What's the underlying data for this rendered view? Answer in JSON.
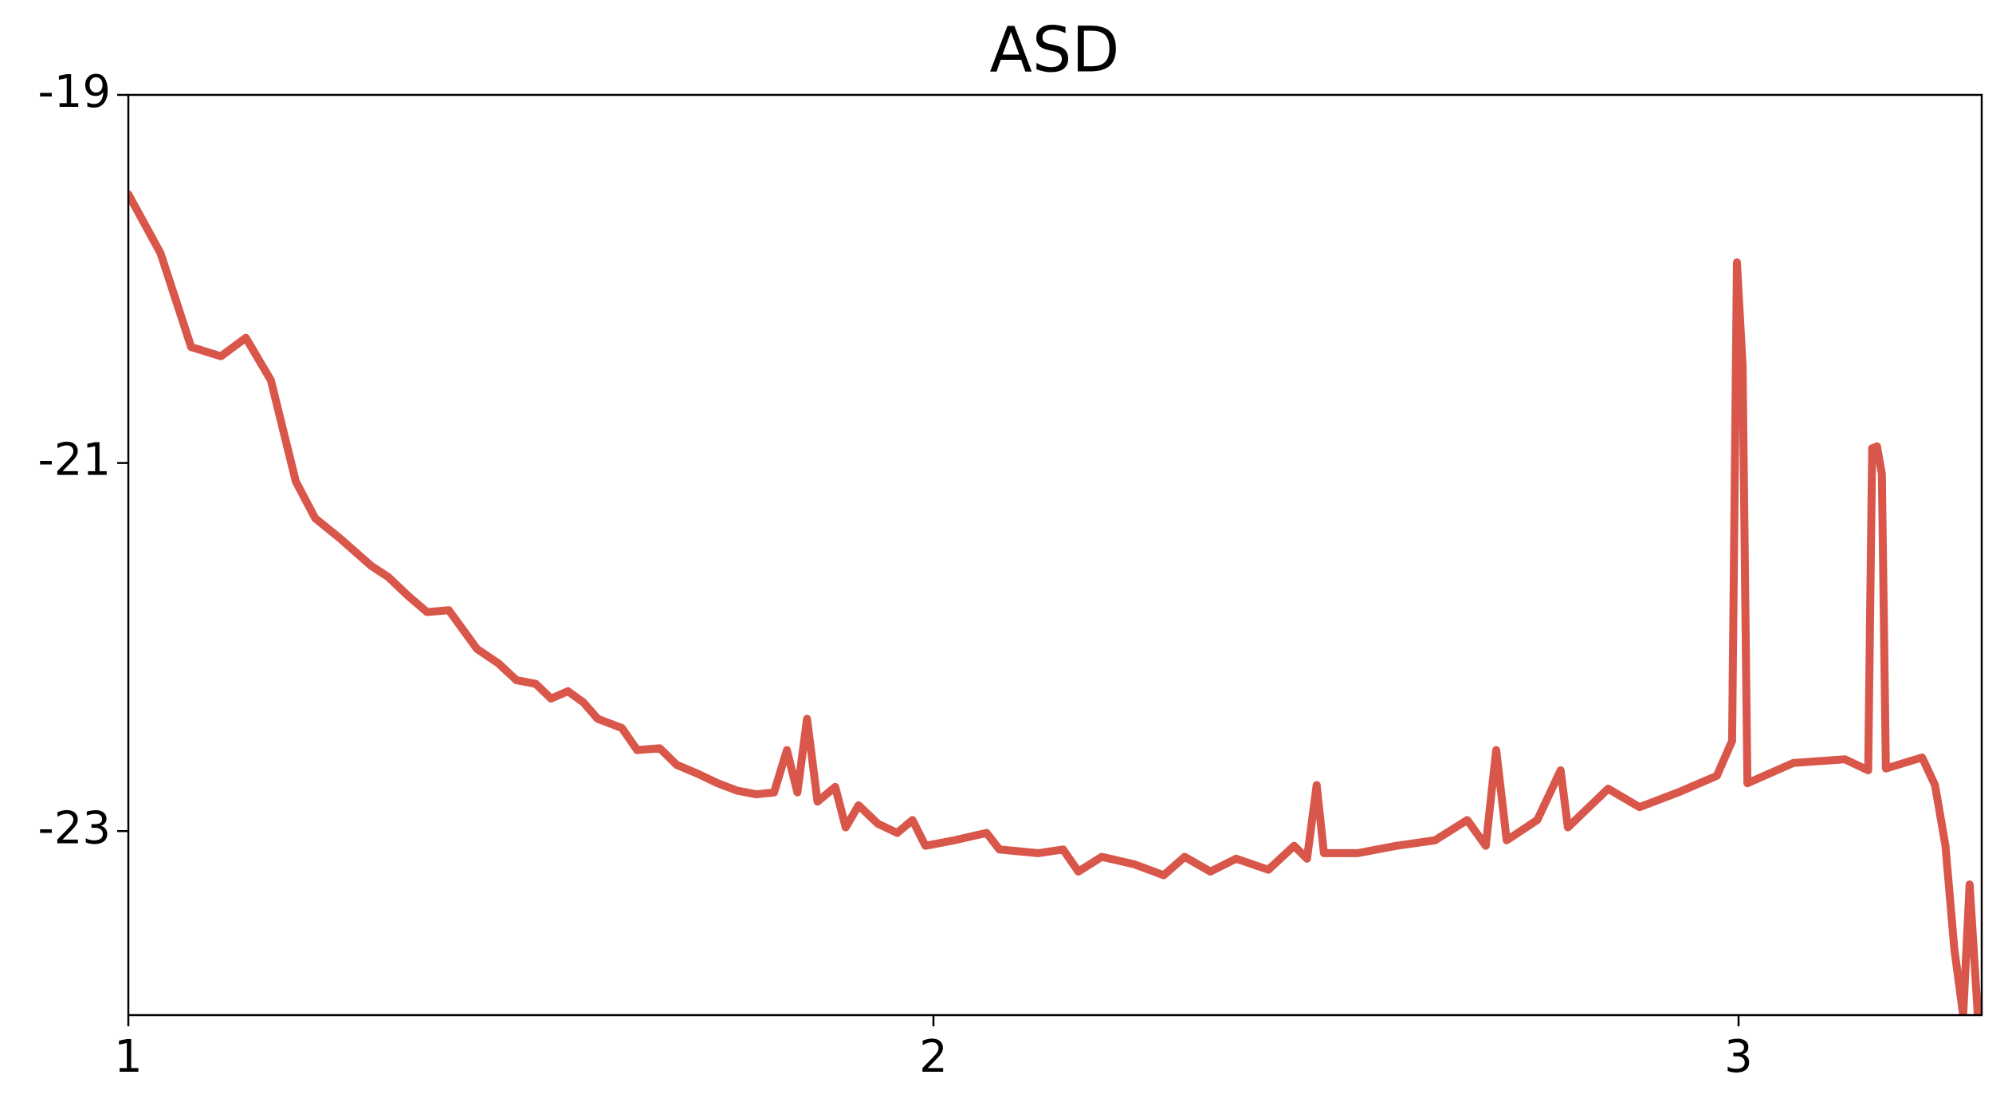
{
  "chart_data": {
    "type": "line",
    "title": "ASD",
    "x": [
      1.0,
      1.04,
      1.078,
      1.115,
      1.146,
      1.177,
      1.208,
      1.232,
      1.263,
      1.302,
      1.323,
      1.347,
      1.371,
      1.398,
      1.433,
      1.46,
      1.482,
      1.506,
      1.525,
      1.546,
      1.565,
      1.583,
      1.613,
      1.632,
      1.66,
      1.681,
      1.708,
      1.732,
      1.756,
      1.78,
      1.802,
      1.818,
      1.831,
      1.843,
      1.856,
      1.878,
      1.891,
      1.907,
      1.931,
      1.955,
      1.974,
      1.99,
      2.026,
      2.066,
      2.082,
      2.13,
      2.161,
      2.18,
      2.209,
      2.249,
      2.286,
      2.312,
      2.344,
      2.376,
      2.416,
      2.448,
      2.464,
      2.476,
      2.485,
      2.527,
      2.575,
      2.623,
      2.663,
      2.686,
      2.699,
      2.712,
      2.75,
      2.779,
      2.788,
      2.838,
      2.877,
      2.925,
      2.973,
      2.992,
      2.998,
      3.005,
      3.011,
      3.068,
      3.132,
      3.161,
      3.166,
      3.172,
      3.178,
      3.183,
      3.228,
      3.244,
      3.257,
      3.268,
      3.279,
      3.287,
      3.297
    ],
    "series": [
      {
        "color": "#d9574a",
        "values": [
          -19.54,
          -19.86,
          -20.37,
          -20.42,
          -20.32,
          -20.55,
          -21.1,
          -21.3,
          -21.41,
          -21.56,
          -21.62,
          -21.72,
          -21.81,
          -21.8,
          -22.01,
          -22.09,
          -22.18,
          -22.2,
          -22.28,
          -22.24,
          -22.3,
          -22.39,
          -22.44,
          -22.56,
          -22.55,
          -22.64,
          -22.69,
          -22.74,
          -22.78,
          -22.8,
          -22.79,
          -22.56,
          -22.79,
          -22.39,
          -22.84,
          -22.76,
          -22.98,
          -22.86,
          -22.96,
          -23.01,
          -22.94,
          -23.08,
          -23.05,
          -23.01,
          -23.1,
          -23.12,
          -23.1,
          -23.22,
          -23.14,
          -23.18,
          -23.24,
          -23.14,
          -23.22,
          -23.15,
          -23.21,
          -23.08,
          -23.15,
          -22.75,
          -23.12,
          -23.12,
          -23.08,
          -23.05,
          -22.94,
          -23.08,
          -22.56,
          -23.05,
          -22.94,
          -22.67,
          -22.98,
          -22.77,
          -22.87,
          -22.79,
          -22.7,
          -22.51,
          -19.91,
          -20.47,
          -22.74,
          -22.63,
          -22.61,
          -22.67,
          -20.92,
          -20.91,
          -21.06,
          -22.66,
          -22.6,
          -22.75,
          -23.08,
          -23.64,
          -24.0,
          -23.29,
          -23.99
        ]
      }
    ],
    "xlim": [
      1,
      3.302
    ],
    "ylim": [
      -24,
      -19
    ],
    "xticks": [
      1,
      2,
      3
    ],
    "yticks": [
      -19,
      -21,
      -23
    ]
  }
}
